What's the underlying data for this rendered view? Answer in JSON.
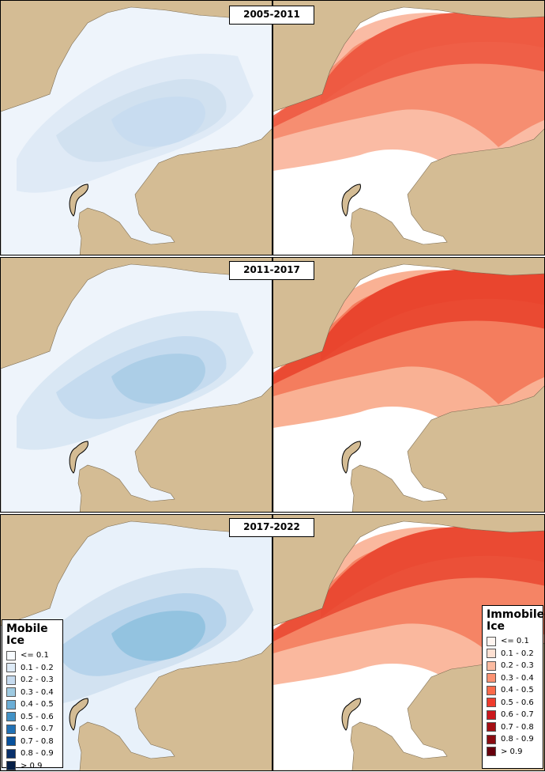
{
  "periods": [
    "2005-2011",
    "2011-2017",
    "2017-2022"
  ],
  "legend_mobile": {
    "title": "Mobile Ice",
    "classes": [
      "<= 0.1",
      "0.1 - 0.2",
      "0.2 - 0.3",
      "0.3 - 0.4",
      "0.4 - 0.5",
      "0.5 - 0.6",
      "0.6 - 0.7",
      "0.7 - 0.8",
      "0.8 - 0.9",
      "> 0.9"
    ],
    "colors": [
      "#f7fbff",
      "#deebf7",
      "#c6dbef",
      "#9ecae1",
      "#6baed6",
      "#4292c6",
      "#2171b5",
      "#08519c",
      "#08306b",
      "#041e45"
    ]
  },
  "legend_immobile": {
    "title": "Immobile Ice",
    "classes": [
      "<= 0.1",
      "0.1 - 0.2",
      "0.2 - 0.3",
      "0.3 - 0.4",
      "0.4 - 0.5",
      "0.5 - 0.6",
      "0.6 - 0.7",
      "0.7 - 0.8",
      "0.8 - 0.9",
      "> 0.9"
    ],
    "colors": [
      "#fff5f0",
      "#fee0d2",
      "#fcbba1",
      "#fc9272",
      "#fb6a4a",
      "#ef3b2c",
      "#cb181d",
      "#a50f15",
      "#8b0c12",
      "#67000d"
    ]
  },
  "land_color": "#d4bc94"
}
